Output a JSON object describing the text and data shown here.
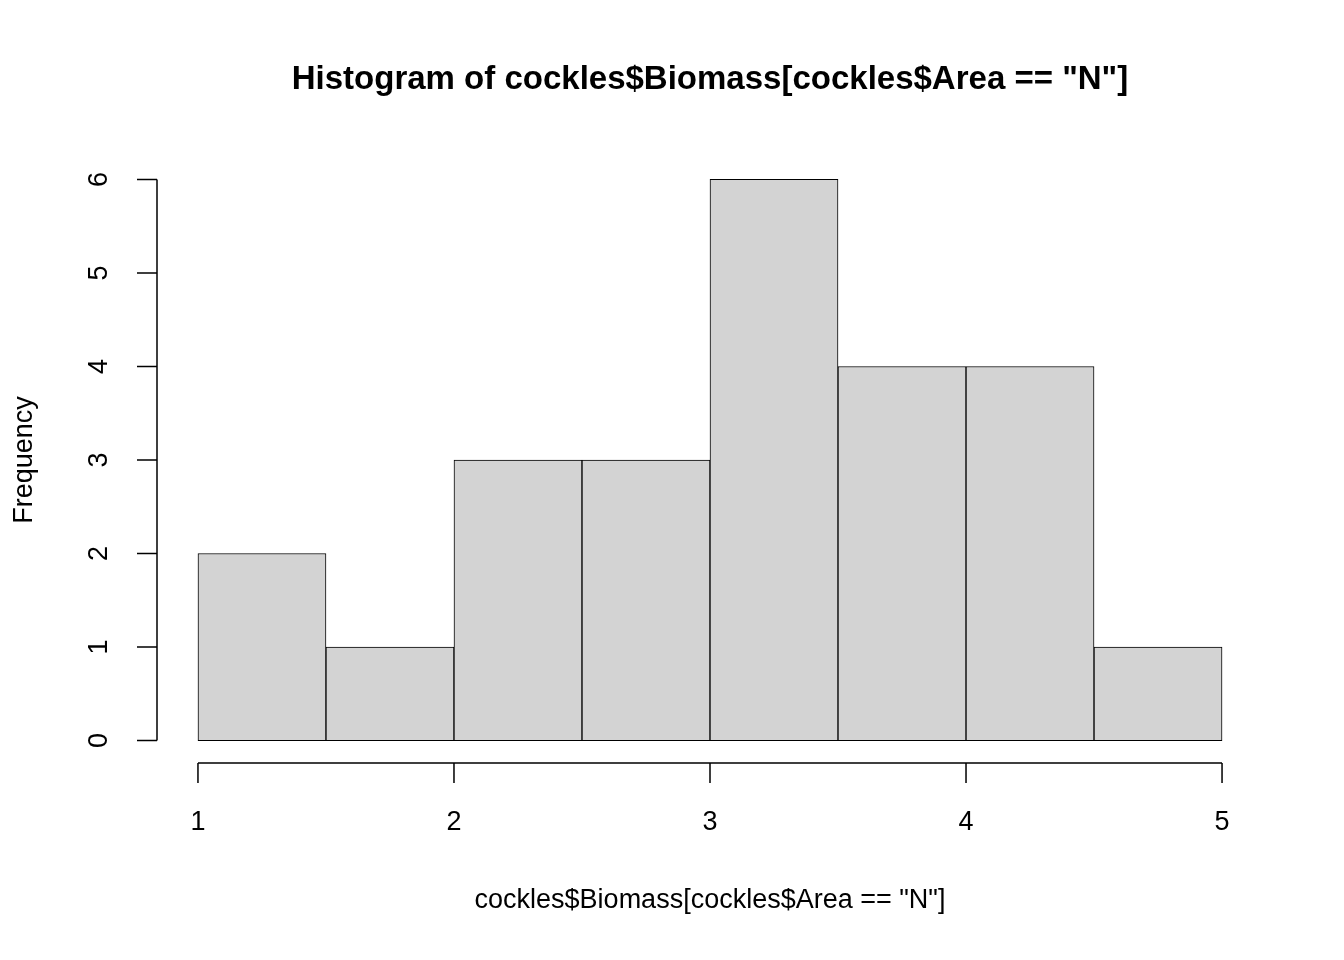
{
  "chart_data": {
    "type": "histogram",
    "title": "Histogram of cockles$Biomass[cockles$Area == \"N\"]",
    "xlabel": "cockles$Biomass[cockles$Area == \"N\"]",
    "ylabel": "Frequency",
    "bins": [
      1,
      1.5,
      2,
      2.5,
      3,
      3.5,
      4,
      4.5,
      5
    ],
    "values": [
      2,
      1,
      3,
      3,
      6,
      4,
      4,
      1
    ],
    "color": "#d3d3d3",
    "xlim": [
      1,
      5
    ],
    "ylim": [
      0,
      6
    ],
    "xticks": [
      1,
      2,
      3,
      4,
      5
    ],
    "yticks": [
      0,
      1,
      2,
      3,
      4,
      5,
      6
    ],
    "grid": false,
    "legend": false
  }
}
